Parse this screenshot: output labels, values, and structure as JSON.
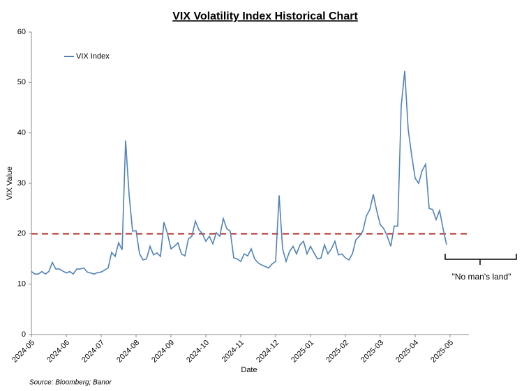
{
  "chart_data": {
    "type": "line",
    "title": "VIX Volatility Index Historical Chart",
    "xlabel": "Date",
    "ylabel": "VIX Value",
    "source": "Source: Bloomberg; Banor",
    "annotation": "\"No man's land\"",
    "reference_line": {
      "value": 20,
      "color": "#c0504d"
    },
    "legend": "upper left",
    "ylim": [
      0,
      60
    ],
    "yticks": [
      0,
      10,
      20,
      30,
      40,
      50,
      60
    ],
    "categories": [
      "2024-05",
      null,
      null,
      null,
      null,
      null,
      null,
      null,
      null,
      null,
      "2024-06",
      null,
      null,
      null,
      null,
      null,
      null,
      null,
      null,
      null,
      "2024-07",
      null,
      null,
      null,
      null,
      null,
      null,
      null,
      null,
      null,
      "2024-08",
      null,
      null,
      null,
      null,
      null,
      null,
      null,
      null,
      null,
      "2024-09",
      null,
      null,
      null,
      null,
      null,
      null,
      null,
      null,
      null,
      "2024-10",
      null,
      null,
      null,
      null,
      null,
      null,
      null,
      null,
      null,
      "2024-11",
      null,
      null,
      null,
      null,
      null,
      null,
      null,
      null,
      null,
      "2024-12",
      null,
      null,
      null,
      null,
      null,
      null,
      null,
      null,
      null,
      "2025-01",
      null,
      null,
      null,
      null,
      null,
      null,
      null,
      null,
      null,
      "2025-02",
      null,
      null,
      null,
      null,
      null,
      null,
      null,
      null,
      null,
      "2025-03",
      null,
      null,
      null,
      null,
      null,
      null,
      null,
      null,
      null,
      "2025-04",
      null,
      null,
      null,
      null,
      null,
      null,
      null,
      null,
      null,
      "2025-05"
    ],
    "series": [
      {
        "name": "VIX Index",
        "color": "#4f81bd",
        "values": [
          12.5,
          12,
          12,
          12.5,
          12,
          12.5,
          14.3,
          13,
          13,
          12.6,
          12.2,
          12.5,
          12,
          13,
          13,
          13.2,
          12.4,
          12.2,
          12,
          12.3,
          12.4,
          12.8,
          13.2,
          16.3,
          15.5,
          18.2,
          16.8,
          38.5,
          27.8,
          20.5,
          20.6,
          16,
          14.8,
          15,
          17.5,
          15.8,
          16.2,
          15.5,
          22.3,
          20,
          17,
          17.5,
          18.2,
          16,
          15.6,
          19,
          19.5,
          22.5,
          20.8,
          20,
          18.5,
          19.5,
          18,
          20.2,
          19.5,
          23,
          21,
          20.5,
          15.2,
          15,
          14.5,
          16,
          15.6,
          17,
          15,
          14.2,
          13.8,
          13.5,
          13.2,
          14,
          14.5,
          27.6,
          17,
          14.5,
          16.5,
          17.5,
          16,
          17.8,
          18.5,
          16,
          17.5,
          16.2,
          15,
          15.2,
          17.8,
          16,
          17,
          18.5,
          15.8,
          16,
          15.2,
          14.8,
          16,
          18.8,
          19.5,
          20.5,
          23.5,
          24.8,
          27.8,
          24.5,
          21.8,
          21,
          19.5,
          17.5,
          21.5,
          21.5,
          45.3,
          52.3,
          40.7,
          35.5,
          31,
          30,
          32.5,
          33.8,
          25,
          24.8,
          22.8,
          24.6,
          21,
          17.8,
          null
        ]
      }
    ]
  }
}
